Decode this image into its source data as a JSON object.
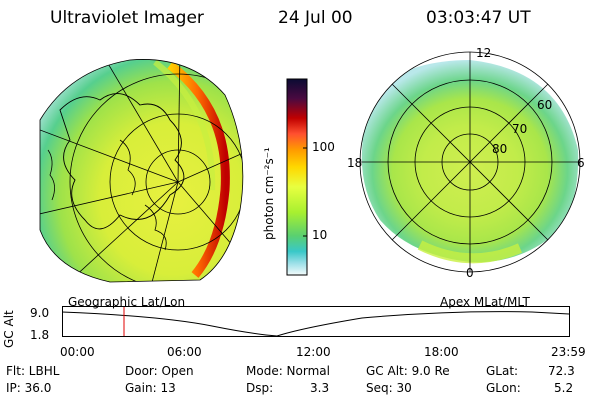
{
  "header": {
    "title": "Ultraviolet Imager",
    "date": "24 Jul 00",
    "time": "03:03:47 UT"
  },
  "left_panel": {
    "label": "Geographic Lat/Lon"
  },
  "right_panel": {
    "label": "Apex MLat/MLT",
    "mlt_labels": [
      "12",
      "18",
      "6",
      "0"
    ],
    "lat_labels": [
      "60",
      "70",
      "80"
    ]
  },
  "colorbar": {
    "unit": "photon cm⁻²s⁻¹",
    "ticks": [
      "100",
      "10"
    ],
    "colors": [
      "#0b0b33",
      "#3a0a3a",
      "#6a0a3a",
      "#c00000",
      "#ff3030",
      "#ff8a00",
      "#ffd200",
      "#e8ff40",
      "#a8f030",
      "#5ad070",
      "#39c8c8",
      "#9ce0e8",
      "#e8f8f8"
    ]
  },
  "alt_plot": {
    "ylabel": "GC Alt",
    "ytick_top": "9.0",
    "ytick_bottom": "1.8",
    "xticks": [
      "00:00",
      "06:00",
      "12:00",
      "18:00",
      "23:59"
    ],
    "marker_time": "03:03:47"
  },
  "footer": {
    "flt": "Flt: LBHL",
    "ip": "IP: 36.0",
    "door": "Door: Open",
    "gain": "Gain: 13",
    "mode": "Mode: Normal",
    "dsp_label": "Dsp:",
    "dsp_value": "3.3",
    "gcalt": "GC Alt: 9.0 Re",
    "seq": "Seq: 30",
    "glat_label": "GLat:",
    "glat_value": "72.3",
    "glon_label": "GLon:",
    "glon_value": "5.2"
  }
}
